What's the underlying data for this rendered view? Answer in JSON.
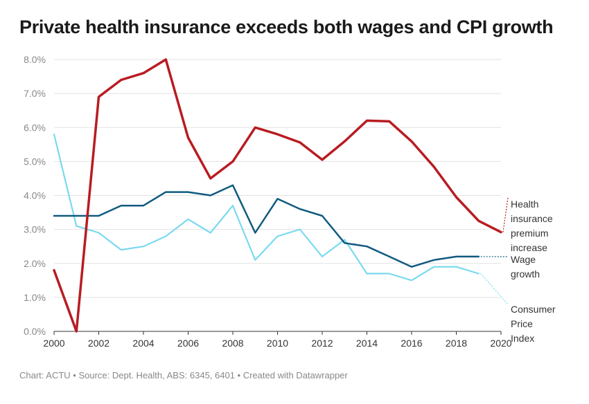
{
  "title": "Private health insurance exceeds both wages and CPI growth",
  "footer": "Chart: ACTU • Source: Dept. Health, ABS: 6345, 6401 • Created with Datawrapper",
  "chart_data": {
    "type": "line",
    "ylim": [
      0,
      8
    ],
    "xlim": [
      2000,
      2020
    ],
    "yticks": [
      0,
      1,
      2,
      3,
      4,
      5,
      6,
      7,
      8
    ],
    "ytick_labels": [
      "0.0%",
      "1.0%",
      "2.0%",
      "3.0%",
      "4.0%",
      "5.0%",
      "6.0%",
      "7.0%",
      "8.0%"
    ],
    "xticks": [
      2000,
      2002,
      2004,
      2006,
      2008,
      2010,
      2012,
      2014,
      2016,
      2018,
      2020
    ],
    "xtick_labels": [
      "2000",
      "2002",
      "2004",
      "2006",
      "2008",
      "2010",
      "2012",
      "2014",
      "2016",
      "2018",
      "2020"
    ],
    "grid": true,
    "series": [
      {
        "name": "Health insurance premium increase",
        "label_lines": [
          "Health",
          "insurance",
          "premium",
          "increase"
        ],
        "color": "#b81c22",
        "x": [
          2000,
          2001,
          2002,
          2003,
          2004,
          2005,
          2006,
          2007,
          2008,
          2009,
          2010,
          2011,
          2012,
          2013,
          2014,
          2015,
          2016,
          2017,
          2018,
          2019,
          2020
        ],
        "y": [
          1.8,
          0.0,
          6.9,
          7.4,
          7.6,
          8.0,
          5.7,
          4.5,
          5.0,
          6.0,
          5.8,
          5.56,
          5.05,
          5.59,
          6.2,
          6.18,
          5.59,
          4.84,
          3.95,
          3.25,
          2.92
        ]
      },
      {
        "name": "Wage growth",
        "label_lines": [
          "Wage",
          "growth"
        ],
        "color": "#0f5a7f",
        "x": [
          2000,
          2001,
          2002,
          2003,
          2004,
          2005,
          2006,
          2007,
          2008,
          2009,
          2010,
          2011,
          2012,
          2013,
          2014,
          2015,
          2016,
          2017,
          2018,
          2019
        ],
        "y": [
          3.4,
          3.4,
          3.4,
          3.7,
          3.7,
          4.1,
          4.1,
          4.0,
          4.3,
          2.9,
          3.9,
          3.6,
          3.4,
          2.6,
          2.5,
          2.2,
          1.9,
          2.1,
          2.2,
          2.2
        ]
      },
      {
        "name": "Consumer Price Index",
        "label_lines": [
          "Consumer",
          "Price",
          "Index"
        ],
        "color": "#7ad9f0",
        "x": [
          2000,
          2001,
          2002,
          2003,
          2004,
          2005,
          2006,
          2007,
          2008,
          2009,
          2010,
          2011,
          2012,
          2013,
          2014,
          2015,
          2016,
          2017,
          2018,
          2019
        ],
        "y": [
          5.8,
          3.1,
          2.9,
          2.4,
          2.5,
          2.8,
          3.3,
          2.9,
          3.7,
          2.1,
          2.8,
          3.0,
          2.2,
          2.7,
          1.7,
          1.7,
          1.5,
          1.9,
          1.9,
          1.7
        ]
      }
    ]
  }
}
